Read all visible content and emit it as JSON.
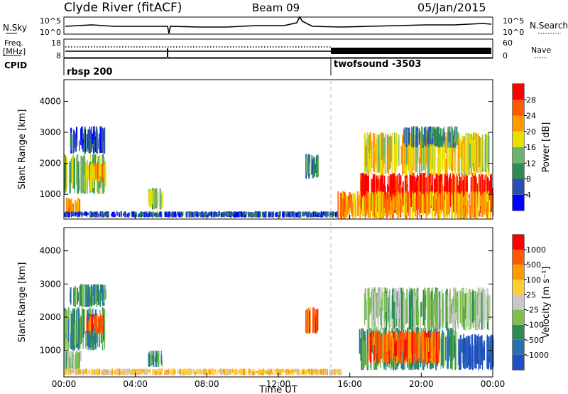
{
  "header": {
    "station": "Clyde River (fitACF)",
    "beam": "Beam 09",
    "date": "05/Jan/2015"
  },
  "summary_panels": {
    "nsky": {
      "label": "N.Sky",
      "ticks": [
        "10^5",
        "10^0"
      ]
    },
    "nsearch": {
      "label": "N.Search",
      "ticks": [
        "10^5",
        "10^0"
      ]
    },
    "freq": {
      "label_line1": "Freq.",
      "label_line2": "[MHz]",
      "ticks": [
        "18",
        "8"
      ]
    },
    "nave": {
      "label": "Nave",
      "ticks": [
        "60",
        "0"
      ]
    },
    "cpid": {
      "label": "CPID",
      "segments": [
        {
          "name": "rbsp 200",
          "start_hour": 0
        },
        {
          "name": "twofsound -3503",
          "start_hour": 15
        }
      ]
    }
  },
  "chart_data": [
    {
      "type": "heatmap",
      "name": "power",
      "ylabel": "Slant Range [km]",
      "ylim": [
        200,
        4700
      ],
      "yticks": [
        "1000",
        "2000",
        "3000",
        "4000"
      ],
      "xlim": [
        0,
        24
      ],
      "colorbar": {
        "label": "Power [dB]",
        "ticks": [
          "28",
          "24",
          "20",
          "16",
          "12",
          "8",
          "4"
        ],
        "colors": [
          "#0000ff",
          "#2a4fb0",
          "#2e8b57",
          "#6cb36c",
          "#e8e000",
          "#ff9900",
          "#ff5a00",
          "#ff0000"
        ]
      },
      "regions": [
        {
          "t0": 0.0,
          "t1": 2.3,
          "r0": 1000,
          "r1": 2300,
          "level": 3
        },
        {
          "t0": 0.1,
          "t1": 0.9,
          "r0": 300,
          "r1": 900,
          "level": 5
        },
        {
          "t0": 1.2,
          "t1": 2.2,
          "r0": 1400,
          "r1": 2000,
          "level": 5
        },
        {
          "t0": 0.3,
          "t1": 2.3,
          "r0": 2300,
          "r1": 3200,
          "level": 1
        },
        {
          "t0": 4.7,
          "t1": 5.5,
          "r0": 500,
          "r1": 1200,
          "level": 3
        },
        {
          "t0": 0.0,
          "t1": 15.5,
          "r0": 250,
          "r1": 450,
          "level": 1
        },
        {
          "t0": 13.5,
          "t1": 14.2,
          "r0": 1500,
          "r1": 2300,
          "level": 2
        },
        {
          "t0": 16.5,
          "t1": 24.0,
          "r0": 400,
          "r1": 1700,
          "level": 7
        },
        {
          "t0": 15.3,
          "t1": 24.0,
          "r0": 200,
          "r1": 1100,
          "level": 5
        },
        {
          "t0": 16.8,
          "t1": 23.8,
          "r0": 1600,
          "r1": 3000,
          "level": 4
        },
        {
          "t0": 19.0,
          "t1": 22.0,
          "r0": 2500,
          "r1": 3200,
          "level": 2
        }
      ]
    },
    {
      "type": "heatmap",
      "name": "velocity",
      "ylabel": "Slant Range [km]",
      "xlabel": "Time UT",
      "ylim": [
        200,
        4700
      ],
      "yticks": [
        "1000",
        "2000",
        "3000",
        "4000"
      ],
      "xlim": [
        0,
        24
      ],
      "xticks": [
        "00:00",
        "04:00",
        "08:00",
        "12:00",
        "16:00",
        "20:00",
        "00:00"
      ],
      "colorbar": {
        "label": "Velocity [m s⁻¹]",
        "ticks": [
          "1000",
          "500",
          "100",
          "25",
          "-25",
          "-100",
          "-500",
          "-1000"
        ],
        "colors": [
          "#2050c0",
          "#2a70b0",
          "#2e8b57",
          "#7fbf50",
          "#c8c8c8",
          "#ffcc33",
          "#ff9900",
          "#ff5a00",
          "#ff0000"
        ]
      },
      "regions": [
        {
          "t0": 0.0,
          "t1": 2.3,
          "r0": 1000,
          "r1": 2300,
          "level": 2
        },
        {
          "t0": 0.0,
          "t1": 0.9,
          "r0": 300,
          "r1": 1000,
          "level": 3
        },
        {
          "t0": 1.2,
          "t1": 2.2,
          "r0": 1500,
          "r1": 2100,
          "level": 7
        },
        {
          "t0": 0.3,
          "t1": 2.3,
          "r0": 2300,
          "r1": 3000,
          "level": 2
        },
        {
          "t0": 4.7,
          "t1": 5.5,
          "r0": 500,
          "r1": 1000,
          "level": 2
        },
        {
          "t0": 0.0,
          "t1": 15.5,
          "r0": 250,
          "r1": 450,
          "level": 5
        },
        {
          "t0": 13.5,
          "t1": 14.2,
          "r0": 1500,
          "r1": 2300,
          "level": 7
        },
        {
          "t0": 16.5,
          "t1": 22.0,
          "r0": 400,
          "r1": 1700,
          "level": 2
        },
        {
          "t0": 17.0,
          "t1": 21.0,
          "r0": 600,
          "r1": 1600,
          "level": 7
        },
        {
          "t0": 22.0,
          "t1": 24.0,
          "r0": 400,
          "r1": 1500,
          "level": 0
        },
        {
          "t0": 16.8,
          "t1": 23.8,
          "r0": 1600,
          "r1": 2900,
          "level": 3
        }
      ]
    }
  ]
}
